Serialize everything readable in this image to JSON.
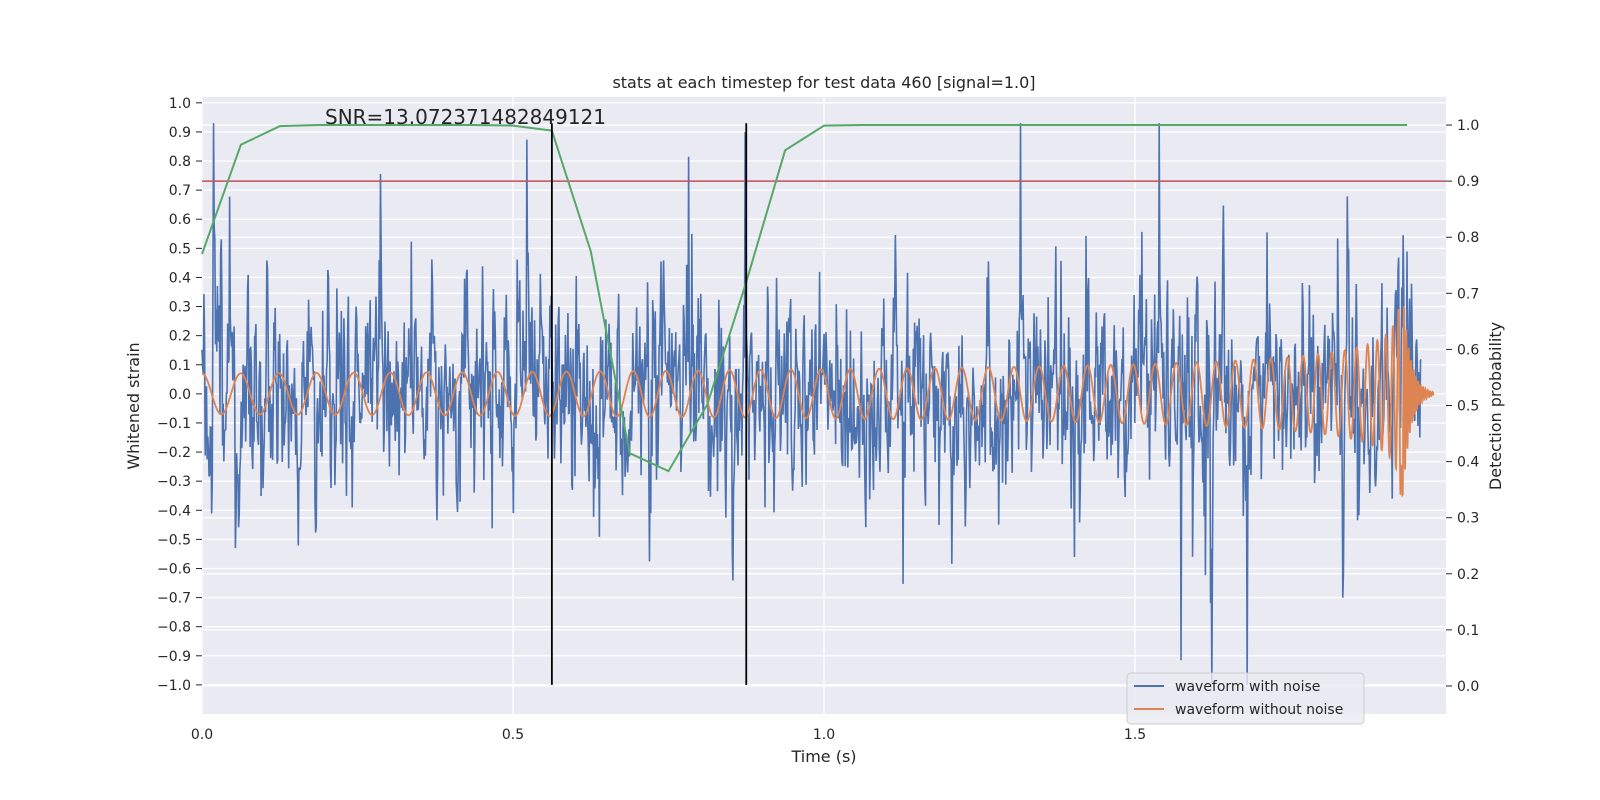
{
  "chart_data": {
    "type": "line",
    "title": "stats at each timestep for test data 460 [signal=1.0]",
    "xlabel": "Time (s)",
    "ylabel": "Whitened strain",
    "y2label": "Detection probability",
    "annotation": "SNR=13.072371482849121",
    "xlim": [
      0.0,
      2.0
    ],
    "ylim": [
      -1.1,
      1.02
    ],
    "y2lim": [
      -0.05,
      1.05
    ],
    "xticks": [
      0.0,
      0.5,
      1.0,
      1.5
    ],
    "xtick_labels": [
      "0.0",
      "0.5",
      "1.0",
      "1.5"
    ],
    "yticks": [
      -1.0,
      -0.9,
      -0.8,
      -0.7,
      -0.6,
      -0.5,
      -0.4,
      -0.3,
      -0.2,
      -0.1,
      0.0,
      0.1,
      0.2,
      0.3,
      0.4,
      0.5,
      0.6,
      0.7,
      0.8,
      0.9,
      1.0
    ],
    "ytick_labels": [
      "−1.0",
      "−0.9",
      "−0.8",
      "−0.7",
      "−0.6",
      "−0.5",
      "−0.4",
      "−0.3",
      "−0.2",
      "−0.1",
      "0.0",
      "0.1",
      "0.2",
      "0.3",
      "0.4",
      "0.5",
      "0.6",
      "0.7",
      "0.8",
      "0.9",
      "1.0"
    ],
    "y2ticks": [
      0.0,
      0.1,
      0.2,
      0.3,
      0.4,
      0.5,
      0.6,
      0.7,
      0.8,
      0.9,
      1.0
    ],
    "y2tick_labels": [
      "0.0",
      "0.1",
      "0.2",
      "0.3",
      "0.4",
      "0.5",
      "0.6",
      "0.7",
      "0.8",
      "0.9",
      "1.0"
    ],
    "legend": {
      "placement": "bottom-right",
      "entries": [
        {
          "label": "waveform with noise",
          "color": "#4c72b0"
        },
        {
          "label": "waveform without noise",
          "color": "#dd8452"
        }
      ]
    },
    "series": [
      {
        "name": "waveform with noise",
        "axis": "left",
        "color": "#4c72b0",
        "generated": "noise",
        "x_range": [
          0.0,
          1.96
        ],
        "n_points": 1900,
        "amplitude_sigma": 0.28,
        "clip": [
          -1.0,
          0.93
        ]
      },
      {
        "name": "waveform without noise",
        "axis": "left",
        "color": "#dd8452",
        "generated": "chirp",
        "x_range": [
          0.0,
          1.98
        ],
        "merger_time": 1.93,
        "base_amplitude": 0.07,
        "peak_amplitude": 0.37
      },
      {
        "name": "detection probability",
        "axis": "right",
        "color": "#55a868",
        "x": [
          0.0,
          0.0625,
          0.125,
          0.1875,
          0.25,
          0.3125,
          0.375,
          0.4375,
          0.5,
          0.5625,
          0.625,
          0.6875,
          0.75,
          0.8125,
          0.875,
          0.9375,
          1.0,
          1.0625,
          1.125,
          1.1875,
          1.25,
          1.3125,
          1.375,
          1.4375,
          1.5,
          1.5625,
          1.625,
          1.6875,
          1.75,
          1.8125,
          1.875,
          1.9375
        ],
        "values": [
          0.77,
          0.965,
          0.998,
          1.0,
          1.0,
          1.0,
          1.0,
          1.0,
          0.999,
          0.99,
          0.775,
          0.415,
          0.383,
          0.502,
          0.72,
          0.955,
          0.999,
          1.0,
          1.0,
          1.0,
          1.0,
          1.0,
          1.0,
          1.0,
          1.0,
          1.0,
          1.0,
          1.0,
          1.0,
          1.0,
          1.0,
          1.0
        ]
      }
    ],
    "threshold": {
      "axis": "right",
      "value": 0.9,
      "color": "#c44e52"
    },
    "vlines": [
      {
        "x": 0.5625,
        "y_range": [
          -1.0,
          0.93
        ],
        "color": "#000000"
      },
      {
        "x": 0.875,
        "y_range": [
          -1.0,
          0.93
        ],
        "color": "#000000"
      }
    ],
    "grid": true,
    "background": "#eaeaf2"
  }
}
